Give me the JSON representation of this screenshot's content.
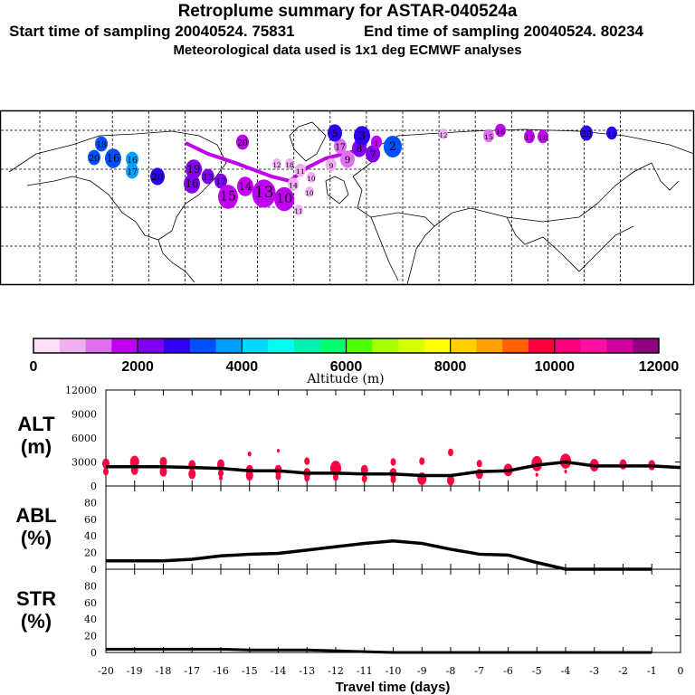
{
  "header": {
    "title": "Retroplume summary for ASTAR-040524a",
    "start_label": "Start time of sampling 20040524. 75831",
    "end_label": "End time of sampling 20040524. 80234",
    "met_label": "Meteorological data used is 1x1 deg ECMWF analyses"
  },
  "colorbar": {
    "title": "Altitude (m)",
    "tick_labels": [
      "0",
      "2000",
      "4000",
      "6000",
      "8000",
      "10000",
      "12000"
    ],
    "colors": [
      "#ffe0f8",
      "#f0b0f0",
      "#e070f0",
      "#c000f0",
      "#8000f0",
      "#3000f0",
      "#0050ff",
      "#00a0ff",
      "#00d8ff",
      "#00fff0",
      "#00f0b0",
      "#00ff70",
      "#50ff00",
      "#a8ff00",
      "#d8ff00",
      "#ffff00",
      "#ffd000",
      "#ffa000",
      "#ff6000",
      "#ff0040",
      "#ff0080",
      "#ff10a0",
      "#d000a0",
      "#900080"
    ]
  },
  "map": {
    "plume_labels": [
      "20",
      "18",
      "16",
      "16",
      "17",
      "20",
      "19",
      "16",
      "13",
      "17",
      "15",
      "14",
      "13",
      "10",
      "12",
      "18",
      "11",
      "10",
      "14",
      "10",
      "11",
      "9",
      "17",
      "9",
      "8",
      "7",
      "5",
      "3",
      "2",
      "1",
      "12",
      "15",
      "16",
      "17",
      "18",
      "20",
      "19",
      "20"
    ]
  },
  "chart_data": [
    {
      "type": "line",
      "panel": "ALT",
      "ylabel": [
        "ALT",
        "(m)"
      ],
      "ylim": [
        0,
        12000
      ],
      "yticks": [
        "0",
        "3000",
        "6000",
        "9000",
        "12000"
      ],
      "x": [
        -20,
        -19,
        -18,
        -17,
        -16,
        -15,
        -14,
        -13,
        -12,
        -11,
        -10,
        -9,
        -8,
        -7,
        -6,
        -5,
        -4,
        -3,
        -2,
        -1,
        0
      ],
      "values": [
        2400,
        2400,
        2400,
        2300,
        2200,
        1900,
        1900,
        1600,
        1600,
        1500,
        1500,
        1300,
        1300,
        1800,
        1900,
        2600,
        3000,
        2500,
        2500,
        2500,
        2300
      ],
      "scatter_color": "#ff0040",
      "scatter": [
        [
          -20,
          2800,
          4
        ],
        [
          -20,
          1800,
          3
        ],
        [
          -19,
          3000,
          5
        ],
        [
          -19,
          2000,
          4
        ],
        [
          -18,
          3000,
          4
        ],
        [
          -18,
          1800,
          4
        ],
        [
          -17,
          2600,
          4
        ],
        [
          -17,
          1500,
          4
        ],
        [
          -16,
          2700,
          4
        ],
        [
          -16,
          1600,
          3
        ],
        [
          -16,
          1000,
          2
        ],
        [
          -15,
          2000,
          4
        ],
        [
          -15,
          1300,
          4
        ],
        [
          -15,
          4000,
          2
        ],
        [
          -14,
          2000,
          4
        ],
        [
          -14,
          1200,
          3
        ],
        [
          -14,
          4400,
          1.5
        ],
        [
          -13,
          1600,
          4
        ],
        [
          -13,
          1000,
          3
        ],
        [
          -13,
          3100,
          3
        ],
        [
          -12,
          2200,
          6
        ],
        [
          -12,
          1100,
          3
        ],
        [
          -11,
          2000,
          4
        ],
        [
          -11,
          900,
          3
        ],
        [
          -10,
          1600,
          4
        ],
        [
          -10,
          800,
          3
        ],
        [
          -10,
          3000,
          3
        ],
        [
          -9,
          900,
          5
        ],
        [
          -9,
          3100,
          3
        ],
        [
          -8,
          700,
          4
        ],
        [
          -8,
          4200,
          3
        ],
        [
          -7,
          1500,
          4
        ],
        [
          -7,
          2800,
          3
        ],
        [
          -6,
          2000,
          5
        ],
        [
          -5,
          2800,
          6
        ],
        [
          -5,
          1400,
          1.5
        ],
        [
          -4,
          3100,
          6
        ],
        [
          -4,
          1800,
          1.5
        ],
        [
          -3,
          2600,
          5
        ],
        [
          -2,
          2700,
          4
        ],
        [
          -1,
          2600,
          4
        ]
      ]
    },
    {
      "type": "line",
      "panel": "ABL",
      "ylabel": [
        "ABL",
        "(%)"
      ],
      "ylim": [
        0,
        100
      ],
      "yticks": [
        "0",
        "20",
        "40",
        "60",
        "80"
      ],
      "x": [
        -20,
        -19,
        -18,
        -17,
        -16,
        -15,
        -14,
        -13,
        -12,
        -11,
        -10,
        -9,
        -8,
        -7,
        -6,
        -5,
        -4,
        -3,
        -2,
        -1
      ],
      "values": [
        10,
        10,
        10,
        12,
        16,
        18,
        19,
        23,
        27,
        31,
        34,
        31,
        24,
        18,
        17,
        8,
        0,
        0,
        0,
        0
      ]
    },
    {
      "type": "line",
      "panel": "STR",
      "ylabel": [
        "STR",
        "(%)"
      ],
      "ylim": [
        0,
        100
      ],
      "yticks": [
        "0",
        "20",
        "40",
        "60",
        "80"
      ],
      "x": [
        -20,
        -19,
        -18,
        -17,
        -16,
        -15,
        -14,
        -13,
        -12,
        -11,
        -10,
        -9,
        -8,
        -7,
        -6,
        -5,
        -4,
        -3,
        -2,
        -1
      ],
      "values": [
        4,
        4,
        4,
        4,
        4,
        3,
        3,
        3,
        2,
        1,
        0,
        0,
        0,
        0,
        0,
        0,
        0,
        0,
        0,
        0
      ],
      "xlabel": "Travel time (days)",
      "xticks": [
        "-20",
        "-19",
        "-18",
        "-17",
        "-16",
        "-15",
        "-14",
        "-13",
        "-12",
        "-11",
        "-10",
        "-9",
        "-8",
        "-7",
        "-6",
        "-5",
        "-4",
        "-3",
        "-2",
        "-1",
        "0"
      ],
      "xlim": [
        -20,
        0
      ]
    }
  ]
}
